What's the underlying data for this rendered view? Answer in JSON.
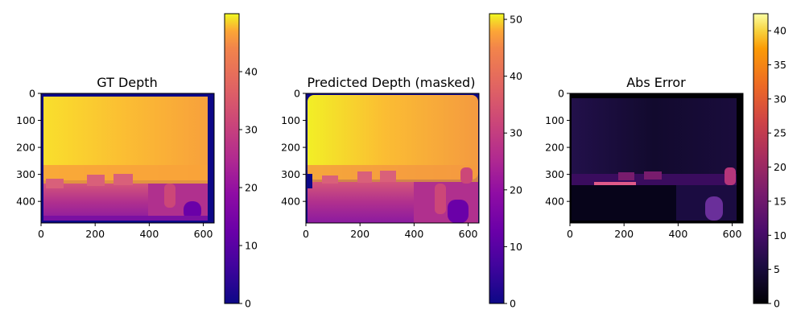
{
  "chart_data": [
    {
      "type": "heatmap",
      "title": "GT Depth",
      "image_width": 640,
      "image_height": 480,
      "xlim": [
        0,
        640
      ],
      "ylim": [
        480,
        0
      ],
      "x_ticks": [
        0,
        200,
        400,
        600
      ],
      "y_ticks": [
        0,
        100,
        200,
        300,
        400
      ],
      "colormap": "plasma",
      "colorbar": {
        "min": 0,
        "max": 50,
        "ticks": [
          0,
          10,
          20,
          30,
          40
        ]
      }
    },
    {
      "type": "heatmap",
      "title": "Predicted Depth (masked)",
      "image_width": 640,
      "image_height": 480,
      "xlim": [
        0,
        640
      ],
      "ylim": [
        480,
        0
      ],
      "x_ticks": [
        0,
        200,
        400,
        600
      ],
      "y_ticks": [
        0,
        100,
        200,
        300,
        400
      ],
      "colormap": "plasma",
      "colorbar": {
        "min": 0,
        "max": 51,
        "ticks": [
          0,
          10,
          20,
          30,
          40,
          50
        ]
      }
    },
    {
      "type": "heatmap",
      "title": "Abs Error",
      "image_width": 640,
      "image_height": 480,
      "xlim": [
        0,
        640
      ],
      "ylim": [
        480,
        0
      ],
      "x_ticks": [
        0,
        200,
        400,
        600
      ],
      "y_ticks": [
        0,
        100,
        200,
        300,
        400
      ],
      "colormap": "inferno",
      "colorbar": {
        "min": 0,
        "max": 42.5,
        "ticks": [
          0,
          5,
          10,
          15,
          20,
          25,
          30,
          35,
          40
        ]
      }
    }
  ]
}
